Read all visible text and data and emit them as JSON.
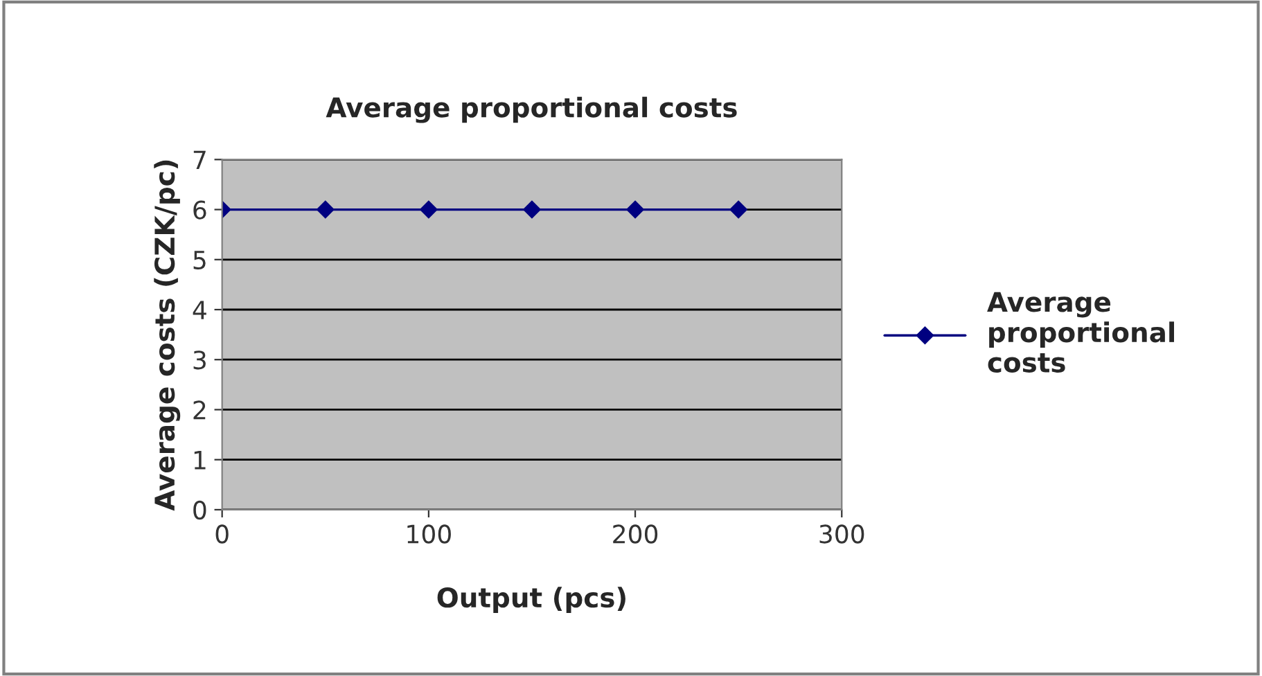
{
  "chart_data": {
    "type": "line",
    "title": "Average proportional costs",
    "xlabel": "Output (pcs)",
    "ylabel": "Average costs (CZK/pc)",
    "x": [
      0,
      50,
      100,
      150,
      200,
      250
    ],
    "series": [
      {
        "name": "Average\nproportional\ncosts",
        "color": "#000080",
        "values": [
          6,
          6,
          6,
          6,
          6,
          6
        ]
      }
    ],
    "xlim": [
      0,
      300
    ],
    "xticks": [
      0,
      100,
      200,
      300
    ],
    "ylim": [
      0,
      7
    ],
    "yticks": [
      0,
      1,
      2,
      3,
      4,
      5,
      6,
      7
    ],
    "grid": "y",
    "legend": "right",
    "marker": "diamond",
    "line_style": "solid"
  }
}
